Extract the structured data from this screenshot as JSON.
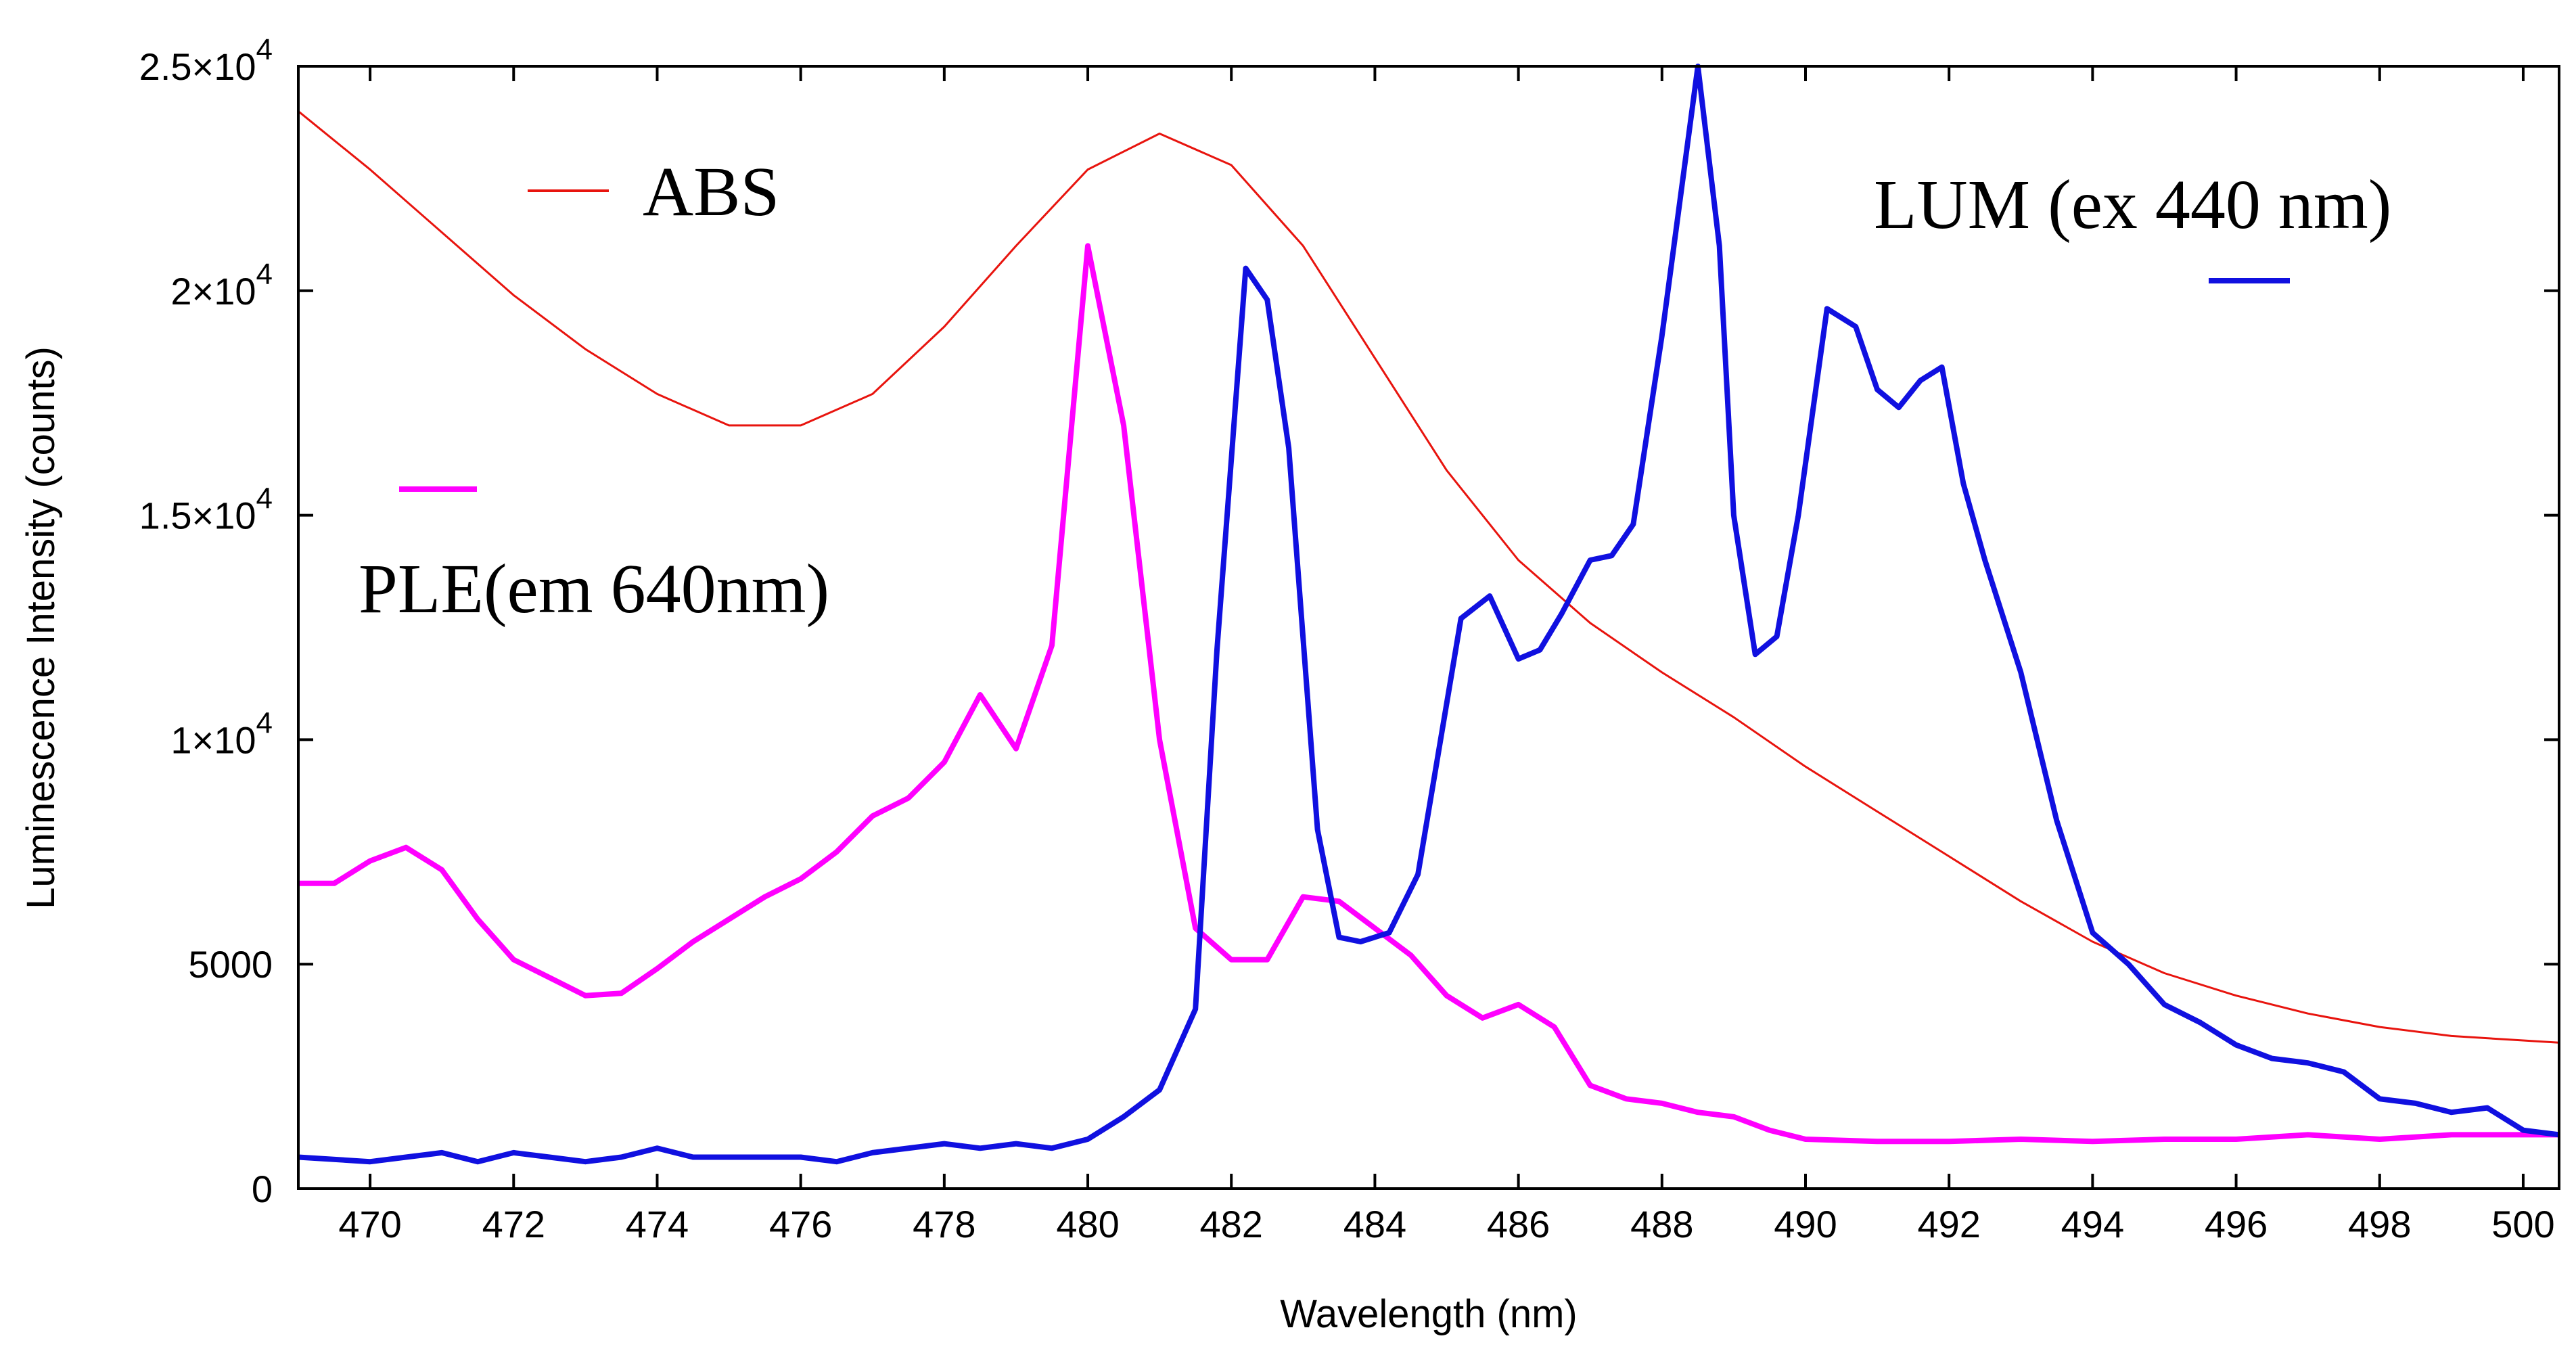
{
  "chart_data": {
    "type": "line",
    "xlabel": "Wavelength (nm)",
    "ylabel": "Luminescence Intensity (counts)",
    "xlim": [
      469,
      500.5
    ],
    "ylim": [
      0,
      25000
    ],
    "x_ticks": [
      470,
      472,
      474,
      476,
      478,
      480,
      482,
      484,
      486,
      488,
      490,
      492,
      494,
      496,
      498,
      500
    ],
    "x_tick_labels": [
      "470",
      "472",
      "474",
      "476",
      "478",
      "480",
      "482",
      "484",
      "486",
      "488",
      "490",
      "492",
      "494",
      "496",
      "498",
      "500"
    ],
    "y_ticks": [
      {
        "value": 0,
        "mantissa": "0",
        "exponent": ""
      },
      {
        "value": 5000,
        "mantissa": "5000",
        "exponent": ""
      },
      {
        "value": 10000,
        "mantissa": "1×10",
        "exponent": "4"
      },
      {
        "value": 15000,
        "mantissa": "1.5×10",
        "exponent": "4"
      },
      {
        "value": 20000,
        "mantissa": "2×10",
        "exponent": "4"
      },
      {
        "value": 25000,
        "mantissa": "2.5×10",
        "exponent": "4"
      }
    ],
    "series": [
      {
        "name": "ABS",
        "legend_label": "ABS",
        "color": "#e8140e",
        "x": [
          469,
          470,
          471,
          472,
          473,
          474,
          475,
          476,
          477,
          478,
          479,
          480,
          481,
          482,
          483,
          484,
          485,
          486,
          487,
          488,
          489,
          490,
          491,
          492,
          493,
          494,
          495,
          496,
          497,
          498,
          499,
          500,
          500.5
        ],
        "y": [
          24000,
          22700,
          21300,
          19900,
          18700,
          17700,
          17000,
          17000,
          17700,
          19200,
          21000,
          22700,
          23500,
          22800,
          21000,
          18500,
          16000,
          14000,
          12600,
          11500,
          10500,
          9400,
          8400,
          7400,
          6400,
          5500,
          4800,
          4300,
          3900,
          3600,
          3400,
          3300,
          3250
        ]
      },
      {
        "name": "PLE(em 640nm)",
        "legend_label": "PLE(em 640nm)",
        "color": "#ff00ff",
        "x": [
          469,
          469.5,
          470,
          470.5,
          471,
          471.5,
          472,
          472.5,
          473,
          473.5,
          474,
          474.5,
          475,
          475.5,
          476,
          476.5,
          477,
          477.5,
          478,
          478.5,
          479,
          479.5,
          480,
          480.5,
          481,
          481.5,
          482,
          482.5,
          483,
          483.5,
          484,
          484.5,
          485,
          485.5,
          486,
          486.5,
          487,
          487.5,
          488,
          488.5,
          489,
          489.5,
          490,
          491,
          492,
          493,
          494,
          495,
          496,
          497,
          498,
          499,
          500,
          500.5
        ],
        "y": [
          6800,
          6800,
          7300,
          7600,
          7100,
          6000,
          5100,
          4700,
          4300,
          4350,
          4900,
          5500,
          6000,
          6500,
          6900,
          7500,
          8300,
          8700,
          9500,
          11000,
          9800,
          12100,
          21000,
          17000,
          10000,
          5800,
          5100,
          5100,
          6500,
          6400,
          5800,
          5200,
          4300,
          3800,
          4100,
          3600,
          2300,
          2000,
          1900,
          1700,
          1600,
          1300,
          1100,
          1050,
          1050,
          1100,
          1050,
          1100,
          1100,
          1200,
          1100,
          1200,
          1200,
          1200
        ]
      },
      {
        "name": "LUM (ex 440 nm)",
        "legend_label": "LUM (ex 440 nm)",
        "color": "#1010e0",
        "x": [
          469,
          470,
          470.5,
          471,
          471.5,
          472,
          472.5,
          473,
          473.5,
          474,
          474.5,
          475,
          476,
          476.5,
          477,
          478,
          478.5,
          479,
          479.5,
          480,
          480.5,
          481,
          481.5,
          481.8,
          482.2,
          482.5,
          482.8,
          483.2,
          483.5,
          483.8,
          484.2,
          484.6,
          485.2,
          485.6,
          486,
          486.3,
          486.6,
          487,
          487.3,
          487.6,
          488,
          488.5,
          488.8,
          489,
          489.3,
          489.6,
          489.9,
          490.3,
          490.7,
          491,
          491.3,
          491.6,
          491.9,
          492.2,
          492.5,
          493,
          493.5,
          494,
          494.5,
          495,
          495.5,
          496,
          496.5,
          497,
          497.5,
          498,
          498.5,
          499,
          499.5,
          500,
          500.5
        ],
        "y": [
          700,
          600,
          700,
          800,
          600,
          800,
          700,
          600,
          700,
          900,
          700,
          700,
          700,
          600,
          800,
          1000,
          900,
          1000,
          900,
          1100,
          1600,
          2200,
          4000,
          12000,
          20500,
          19800,
          16500,
          8000,
          5600,
          5500,
          5700,
          7000,
          12700,
          13200,
          11800,
          12000,
          12800,
          14000,
          14100,
          14800,
          19000,
          25000,
          21000,
          15000,
          11900,
          12300,
          15000,
          19600,
          19200,
          17800,
          17400,
          18000,
          18300,
          15700,
          14000,
          11500,
          8200,
          5700,
          5000,
          4100,
          3700,
          3200,
          2900,
          2800,
          2600,
          2000,
          1900,
          1700,
          1800,
          1300,
          1200
        ]
      }
    ]
  }
}
